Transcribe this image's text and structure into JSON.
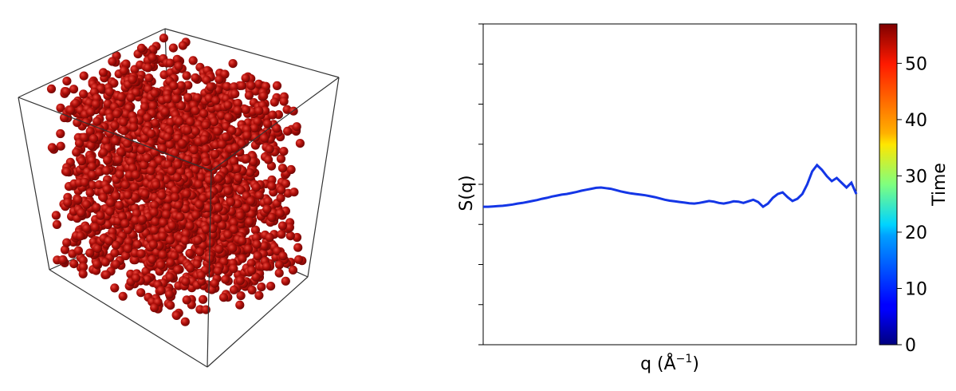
{
  "chart_data": [
    {
      "type": "scatter3d",
      "description_hidden": true,
      "particle_color": "#b00f0a",
      "box_color": "#333333"
    },
    {
      "type": "line",
      "xlabel": "q (Å",
      "xlabel_sup": "−1",
      "xlabel_close": ")",
      "ylabel": "S(q)",
      "line_color": "#1436e6",
      "grid": false,
      "ylim": [
        0,
        1
      ],
      "series": [
        {
          "values": [
            0.43,
            0.43,
            0.431,
            0.432,
            0.433,
            0.435,
            0.437,
            0.44,
            0.442,
            0.445,
            0.448,
            0.451,
            0.455,
            0.458,
            0.462,
            0.465,
            0.468,
            0.47,
            0.473,
            0.476,
            0.48,
            0.483,
            0.486,
            0.489,
            0.49,
            0.488,
            0.486,
            0.482,
            0.478,
            0.475,
            0.472,
            0.47,
            0.468,
            0.466,
            0.463,
            0.46,
            0.456,
            0.452,
            0.449,
            0.447,
            0.445,
            0.443,
            0.441,
            0.44,
            0.442,
            0.445,
            0.448,
            0.446,
            0.442,
            0.44,
            0.443,
            0.447,
            0.446,
            0.442,
            0.447,
            0.452,
            0.445,
            0.43,
            0.44,
            0.458,
            0.47,
            0.475,
            0.46,
            0.448,
            0.455,
            0.47,
            0.5,
            0.54,
            0.56,
            0.545,
            0.525,
            0.51,
            0.52,
            0.505,
            0.49,
            0.505,
            0.47
          ]
        }
      ],
      "colorbar": {
        "label": "Time",
        "ticks": [
          "0",
          "10",
          "20",
          "30",
          "40",
          "50"
        ],
        "tick_values": [
          0,
          10,
          20,
          30,
          40,
          50
        ],
        "range": [
          0,
          57
        ],
        "colormap": "jet"
      }
    }
  ]
}
